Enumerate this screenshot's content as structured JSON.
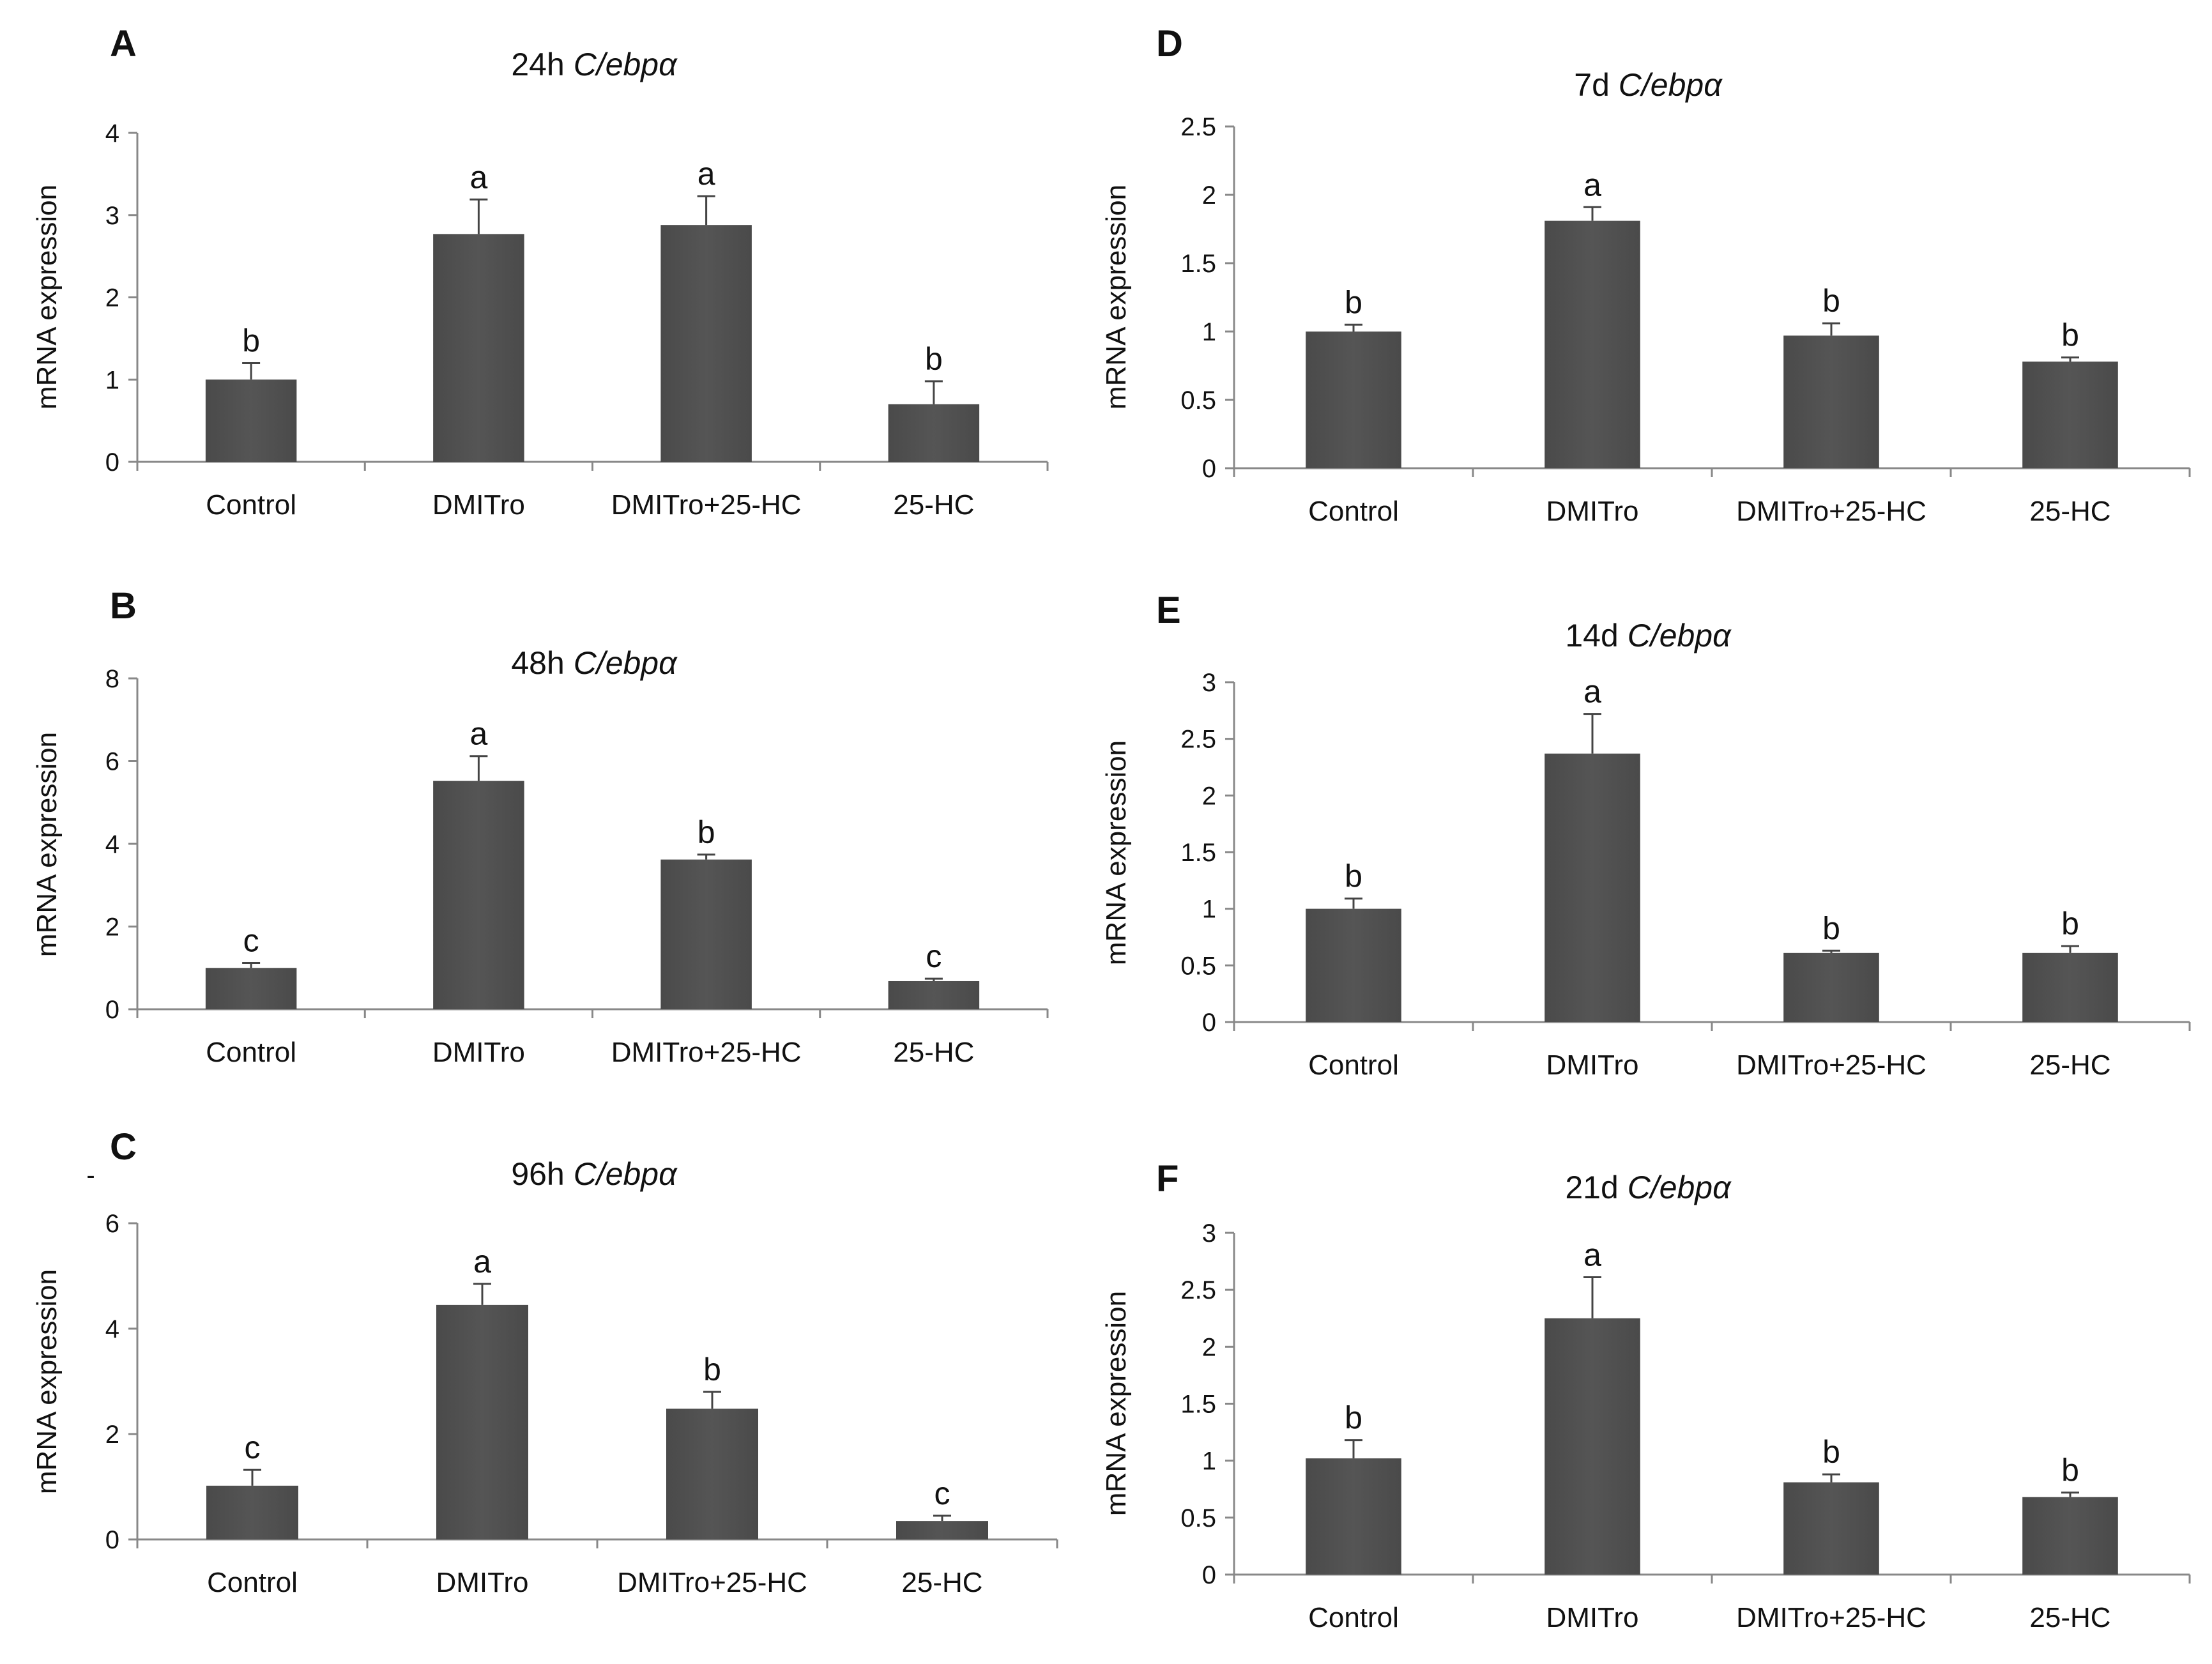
{
  "figure": {
    "gene": "C/ebpα",
    "ylabel": "mRNA expression",
    "categories": [
      "Control",
      "DMITro",
      "DMITro+25-HC",
      "25-HC"
    ],
    "bar_color": "#555555",
    "stray_mark": "-"
  },
  "chart_data": [
    {
      "id": "A",
      "type": "bar",
      "title_time": "24h",
      "title_gene": "C/ebpα",
      "ylabel": "mRNA expression",
      "categories": [
        "Control",
        "DMITro",
        "DMITro+25-HC",
        "25-HC"
      ],
      "values": [
        1.0,
        2.77,
        2.88,
        0.7
      ],
      "errors": [
        0.2,
        0.42,
        0.35,
        0.28
      ],
      "sig_letters": [
        "b",
        "a",
        "a",
        "b"
      ],
      "ylim": [
        0,
        4
      ],
      "yticks": [
        0,
        1,
        2,
        3,
        4
      ],
      "ytick_labels": [
        "0",
        "1",
        "2",
        "3",
        "4"
      ],
      "grid": false
    },
    {
      "id": "B",
      "type": "bar",
      "title_time": "48h",
      "title_gene": "C/ebpα",
      "ylabel": "mRNA expression",
      "categories": [
        "Control",
        "DMITro",
        "DMITro+25-HC",
        "25-HC"
      ],
      "values": [
        1.0,
        5.52,
        3.62,
        0.68
      ],
      "errors": [
        0.12,
        0.6,
        0.12,
        0.06
      ],
      "sig_letters": [
        "c",
        "a",
        "b",
        "c"
      ],
      "ylim": [
        0,
        8
      ],
      "yticks": [
        0,
        2,
        4,
        6,
        8
      ],
      "ytick_labels": [
        "0",
        "2",
        "4",
        "6",
        "8"
      ],
      "grid": false
    },
    {
      "id": "C",
      "type": "bar",
      "title_time": "96h",
      "title_gene": "C/ebpα",
      "ylabel": "mRNA expression",
      "categories": [
        "Control",
        "DMITro",
        "DMITro+25-HC",
        "25-HC"
      ],
      "values": [
        1.02,
        4.45,
        2.48,
        0.35
      ],
      "errors": [
        0.3,
        0.4,
        0.32,
        0.1
      ],
      "sig_letters": [
        "c",
        "a",
        "b",
        "c"
      ],
      "ylim": [
        0,
        6
      ],
      "yticks": [
        0,
        2,
        4,
        6
      ],
      "ytick_labels": [
        "0",
        "2",
        "4",
        "6"
      ],
      "grid": false
    },
    {
      "id": "D",
      "type": "bar",
      "title_time": "7d",
      "title_gene": "C/ebpα",
      "ylabel": "mRNA expression",
      "categories": [
        "Control",
        "DMITro",
        "DMITro+25-HC",
        "25-HC"
      ],
      "values": [
        1.0,
        1.81,
        0.97,
        0.78
      ],
      "errors": [
        0.05,
        0.1,
        0.09,
        0.03
      ],
      "sig_letters": [
        "b",
        "a",
        "b",
        "b"
      ],
      "ylim": [
        0,
        2.5
      ],
      "yticks": [
        0,
        0.5,
        1,
        1.5,
        2,
        2.5
      ],
      "ytick_labels": [
        "0",
        "0.5",
        "1",
        "1.5",
        "2",
        "2.5"
      ],
      "grid": false
    },
    {
      "id": "E",
      "type": "bar",
      "title_time": "14d",
      "title_gene": "C/ebpα",
      "ylabel": "mRNA expression",
      "categories": [
        "Control",
        "DMITro",
        "DMITro+25-HC",
        "25-HC"
      ],
      "values": [
        1.0,
        2.37,
        0.61,
        0.61
      ],
      "errors": [
        0.09,
        0.35,
        0.02,
        0.06
      ],
      "sig_letters": [
        "b",
        "a",
        "b",
        "b"
      ],
      "ylim": [
        0,
        3
      ],
      "yticks": [
        0,
        0.5,
        1,
        1.5,
        2,
        2.5,
        3
      ],
      "ytick_labels": [
        "0",
        "0.5",
        "1",
        "1.5",
        "2",
        "2.5",
        "3"
      ],
      "grid": false
    },
    {
      "id": "F",
      "type": "bar",
      "title_time": "21d",
      "title_gene": "C/ebpα",
      "ylabel": "mRNA expression",
      "categories": [
        "Control",
        "DMITro",
        "DMITro+25-HC",
        "25-HC"
      ],
      "values": [
        1.02,
        2.25,
        0.81,
        0.68
      ],
      "errors": [
        0.16,
        0.36,
        0.07,
        0.04
      ],
      "sig_letters": [
        "b",
        "a",
        "b",
        "b"
      ],
      "ylim": [
        0,
        3
      ],
      "yticks": [
        0,
        0.5,
        1,
        1.5,
        2,
        2.5,
        3
      ],
      "ytick_labels": [
        "0",
        "0.5",
        "1",
        "1.5",
        "2",
        "2.5",
        "3"
      ],
      "grid": false
    }
  ]
}
